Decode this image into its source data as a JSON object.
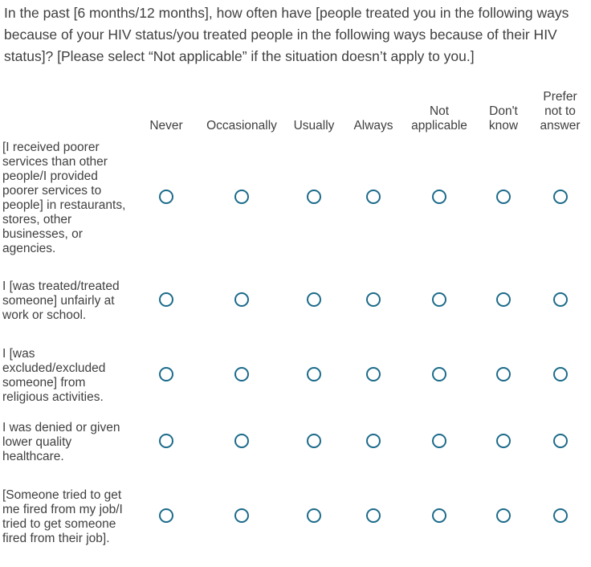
{
  "question": {
    "text": "In the past [6 months/12 months], how often have [people treated you in the following ways because of your HIV status/you treated people in the following ways because of their HIV status]? [Please select “Not applicable” if the situation doesn’t apply to you.]"
  },
  "columns": [
    {
      "label": "Never"
    },
    {
      "label": "Occasionally"
    },
    {
      "label": "Usually"
    },
    {
      "label": "Always"
    },
    {
      "label": "Not applicable"
    },
    {
      "label": "Don't know"
    },
    {
      "label": "Prefer not to answer"
    }
  ],
  "rows": [
    {
      "label": "[I received poorer services than other people/I provided poorer services to people] in restaurants, stores, other businesses, or agencies."
    },
    {
      "label": "I [was treated/treated someone] unfairly at work or school."
    },
    {
      "label": "I [was excluded/excluded someone] from religious activities."
    },
    {
      "label": "I was denied or given lower quality healthcare."
    },
    {
      "label": "[Someone tried to get me fired from my job/I tried to get someone fired from their job]."
    }
  ],
  "colors": {
    "text": "#404040",
    "radio_border": "#1c6b8a",
    "background": "#ffffff"
  }
}
